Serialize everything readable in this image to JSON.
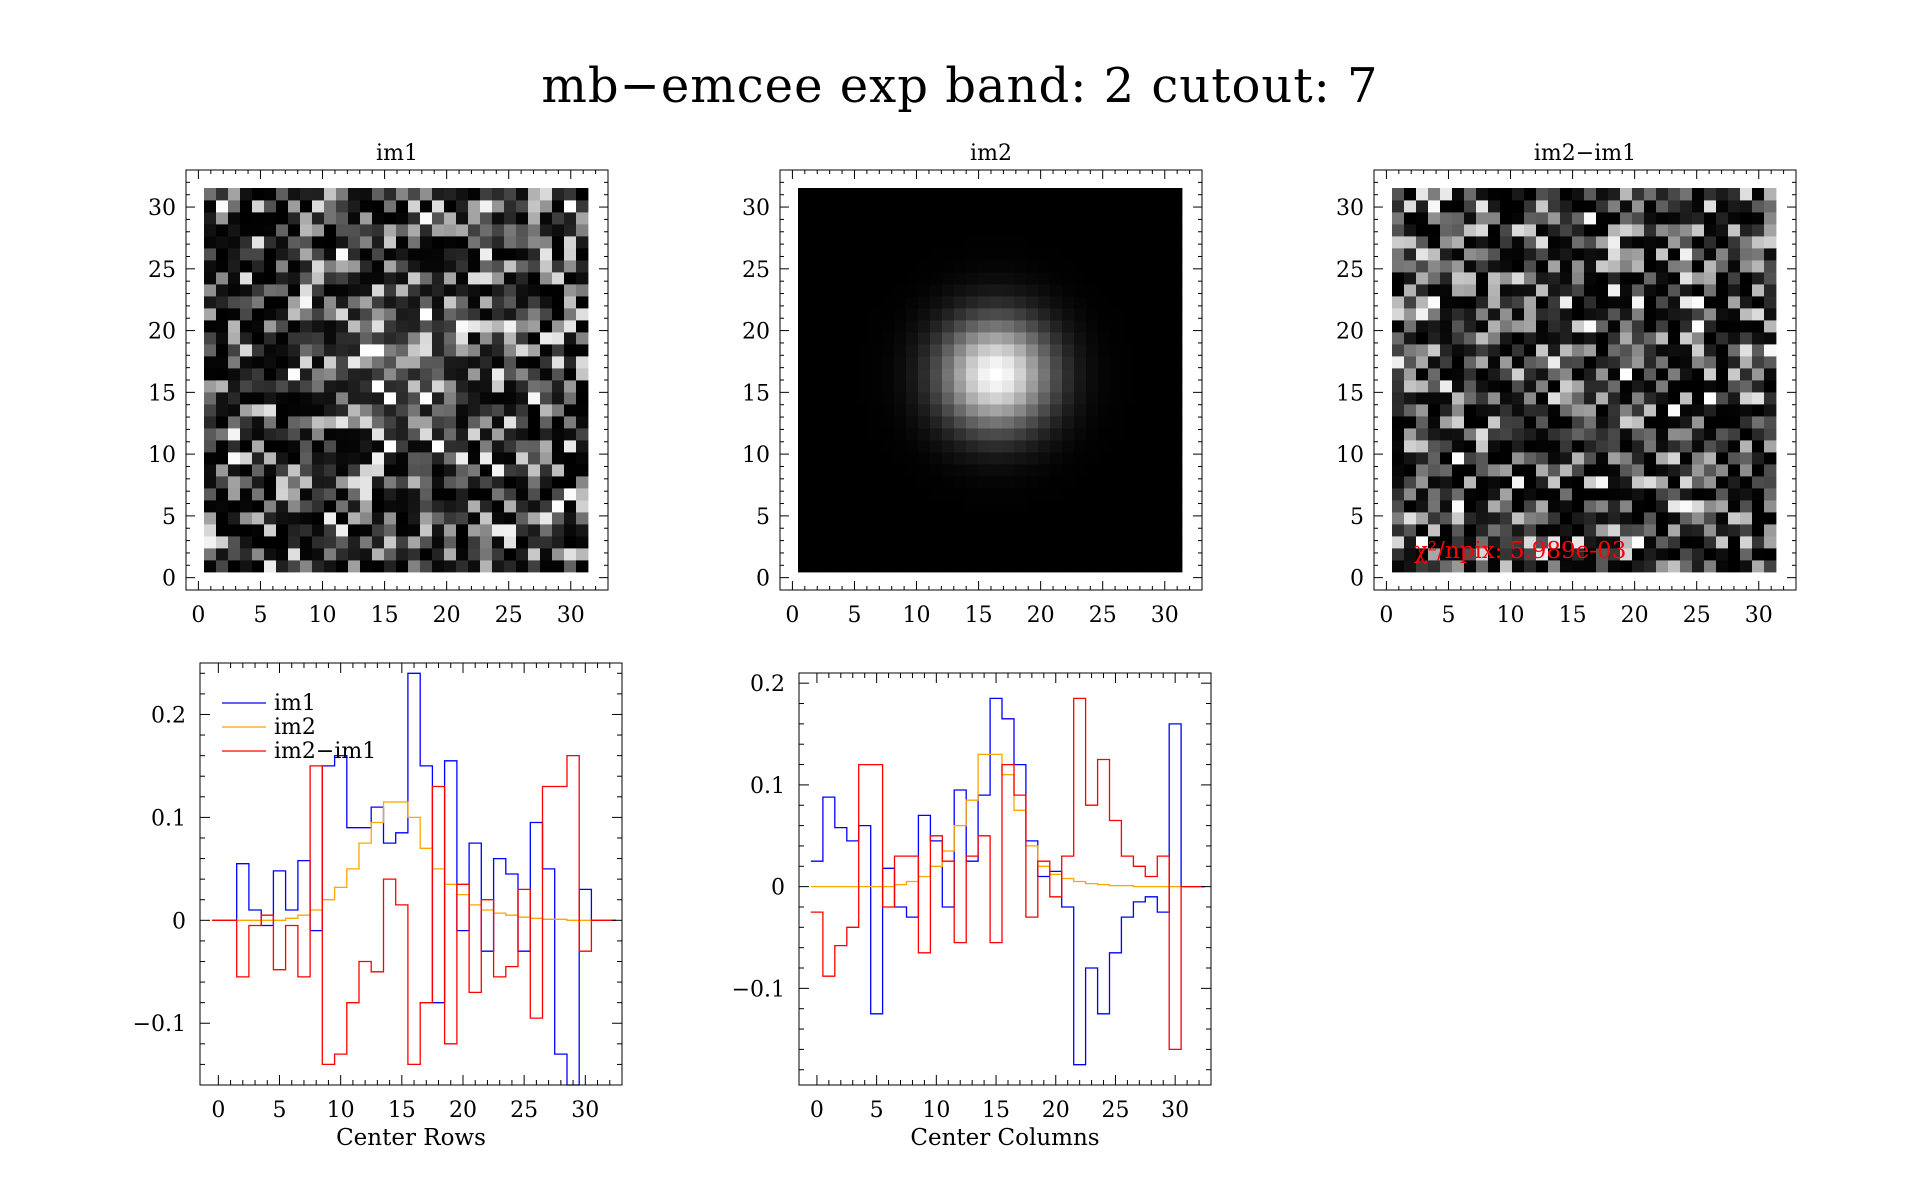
{
  "figure": {
    "title": "mb−emcee exp band: 2 cutout: 7"
  },
  "colors": {
    "im1": "#0000ff",
    "im2": "#ffa500",
    "diff": "#ff0000",
    "annotation": "#ff0000"
  },
  "chart_data": [
    {
      "type": "heatmap",
      "title": "im1",
      "xlim": [
        -1,
        33
      ],
      "ylim": [
        -1,
        33
      ],
      "xticks": [
        "0",
        "5",
        "10",
        "15",
        "20",
        "25",
        "30"
      ],
      "yticks": [
        "0",
        "5",
        "10",
        "15",
        "20",
        "25",
        "30"
      ],
      "colormap": "grayscale",
      "description": "noisy image with a faint source near (16,17)"
    },
    {
      "type": "heatmap",
      "title": "im2",
      "xlim": [
        -1,
        33
      ],
      "ylim": [
        -1,
        33
      ],
      "xticks": [
        "0",
        "5",
        "10",
        "15",
        "20",
        "25",
        "30"
      ],
      "yticks": [
        "0",
        "5",
        "10",
        "15",
        "20",
        "25",
        "30"
      ],
      "colormap": "grayscale",
      "model": {
        "kind": "gaussian",
        "center": [
          16,
          16
        ],
        "sigma": 3.2
      }
    },
    {
      "type": "heatmap",
      "title": "im2−im1",
      "xlim": [
        -1,
        33
      ],
      "ylim": [
        -1,
        33
      ],
      "xticks": [
        "0",
        "5",
        "10",
        "15",
        "20",
        "25",
        "30"
      ],
      "yticks": [
        "0",
        "5",
        "10",
        "15",
        "20",
        "25",
        "30"
      ],
      "colormap": "grayscale",
      "annotation": "χ²/npix: 5.989e-03"
    },
    {
      "type": "line",
      "step": true,
      "xlabel": "Center Rows",
      "xlim": [
        -1.5,
        33
      ],
      "ylim": [
        -0.16,
        0.25
      ],
      "xticks": [
        0,
        5,
        10,
        15,
        20,
        25,
        30
      ],
      "yticks": [
        -0.1,
        0,
        0.1,
        0.2
      ],
      "ytick_labels": [
        "−0.1",
        "0",
        "0.1",
        "0.2"
      ],
      "legend_position": "top-left",
      "x": [
        0,
        1,
        2,
        3,
        4,
        5,
        6,
        7,
        8,
        9,
        10,
        11,
        12,
        13,
        14,
        15,
        16,
        17,
        18,
        19,
        20,
        21,
        22,
        23,
        24,
        25,
        26,
        27,
        28,
        29,
        30,
        31,
        32
      ],
      "series": [
        {
          "name": "im1",
          "values": [
            0,
            0,
            0.055,
            0.01,
            -0.005,
            0.048,
            0.01,
            0.058,
            -0.01,
            0.15,
            0.16,
            0.09,
            0.09,
            0.11,
            0.075,
            0.085,
            0.24,
            0.15,
            -0.08,
            0.155,
            -0.01,
            0.075,
            -0.03,
            0.06,
            0.045,
            -0.03,
            0.095,
            0.05,
            -0.13,
            -0.16,
            0.03,
            0,
            0
          ]
        },
        {
          "name": "im2",
          "values": [
            0,
            0,
            0,
            0,
            0,
            0,
            0.002,
            0.005,
            0.01,
            0.02,
            0.032,
            0.05,
            0.075,
            0.095,
            0.115,
            0.115,
            0.1,
            0.07,
            0.05,
            0.035,
            0.025,
            0.015,
            0.01,
            0.007,
            0.005,
            0.003,
            0.002,
            0.001,
            0.001,
            0,
            0,
            0,
            0
          ]
        },
        {
          "name": "im2−im1",
          "values": [
            0,
            0,
            -0.055,
            -0.005,
            0.005,
            -0.048,
            -0.005,
            -0.055,
            0.15,
            -0.14,
            -0.13,
            -0.08,
            -0.04,
            -0.05,
            0.04,
            0.015,
            -0.14,
            -0.08,
            0.13,
            -0.12,
            0.035,
            -0.07,
            0.02,
            -0.055,
            -0.045,
            0.03,
            -0.095,
            0.13,
            0.13,
            0.16,
            -0.03,
            0,
            0
          ]
        }
      ]
    },
    {
      "type": "line",
      "step": true,
      "xlabel": "Center Columns",
      "xlim": [
        -1.5,
        33
      ],
      "ylim": [
        -0.195,
        0.21
      ],
      "xticks": [
        0,
        5,
        10,
        15,
        20,
        25,
        30
      ],
      "yticks": [
        -0.1,
        0,
        0.1,
        0.2
      ],
      "ytick_labels": [
        "−0.1",
        "0",
        "0.1",
        "0.2"
      ],
      "x": [
        0,
        1,
        2,
        3,
        4,
        5,
        6,
        7,
        8,
        9,
        10,
        11,
        12,
        13,
        14,
        15,
        16,
        17,
        18,
        19,
        20,
        21,
        22,
        23,
        24,
        25,
        26,
        27,
        28,
        29,
        30,
        31,
        32
      ],
      "series": [
        {
          "name": "im1",
          "values": [
            0.025,
            0.088,
            0.058,
            0.045,
            0.06,
            -0.125,
            0.018,
            -0.02,
            -0.03,
            0.07,
            0.045,
            -0.02,
            0.095,
            0.025,
            0.09,
            0.185,
            0.165,
            0.12,
            0.045,
            0.01,
            0.015,
            -0.02,
            -0.175,
            -0.08,
            -0.125,
            -0.065,
            -0.03,
            -0.015,
            -0.01,
            -0.025,
            0.16,
            0,
            0
          ]
        },
        {
          "name": "im2",
          "values": [
            0,
            0,
            0,
            0,
            0,
            0,
            0,
            0.002,
            0.005,
            0.01,
            0.02,
            0.035,
            0.06,
            0.085,
            0.13,
            0.13,
            0.11,
            0.075,
            0.04,
            0.02,
            0.012,
            0.008,
            0.005,
            0.003,
            0.002,
            0.001,
            0.001,
            0,
            0,
            0,
            0,
            0,
            0
          ]
        },
        {
          "name": "im2−im1",
          "values": [
            -0.025,
            -0.088,
            -0.058,
            -0.04,
            0.12,
            0.12,
            -0.02,
            0.03,
            0.03,
            -0.065,
            0.05,
            0.025,
            -0.055,
            0.03,
            0.05,
            -0.055,
            0.12,
            0.09,
            -0.03,
            0.025,
            -0.01,
            0.03,
            0.185,
            0.08,
            0.125,
            0.065,
            0.03,
            0.02,
            0.01,
            0.03,
            -0.16,
            0,
            0
          ]
        }
      ]
    }
  ]
}
